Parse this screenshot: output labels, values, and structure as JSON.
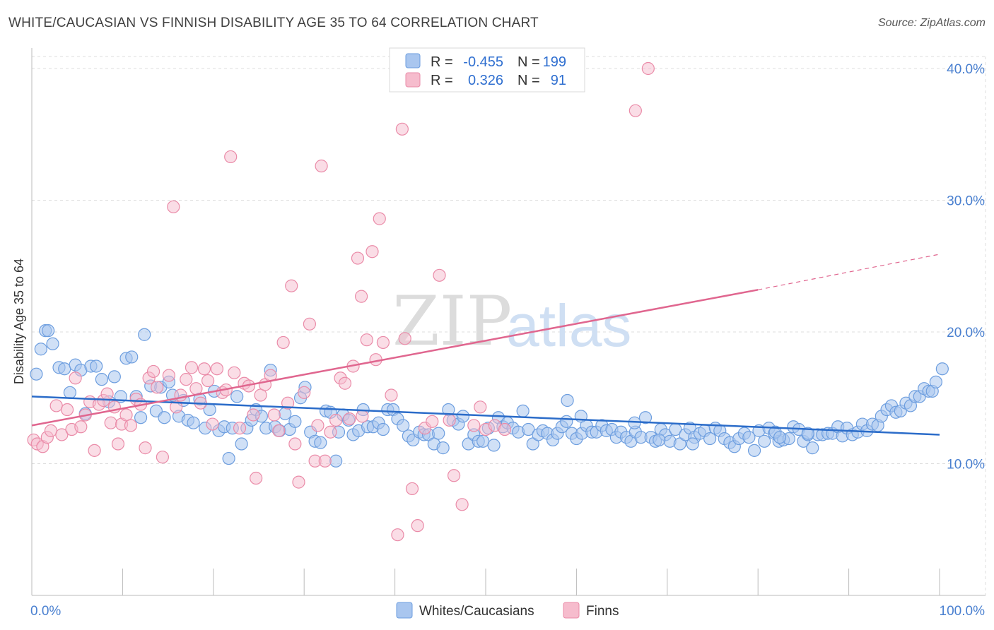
{
  "title": "WHITE/CAUCASIAN VS FINNISH DISABILITY AGE 35 TO 64 CORRELATION CHART",
  "source": "Source: ZipAtlas.com",
  "watermark": {
    "zip": "ZIP",
    "atlas": "atlas"
  },
  "colors": {
    "blue_fill": "#a9c6ef",
    "blue_stroke": "#6d9edf",
    "blue_line": "#2b6cc9",
    "pink_fill": "#f6bccd",
    "pink_stroke": "#ea8ba8",
    "pink_line": "#e0668f",
    "grid": "#dddddd",
    "tick_text": "#4a80d0"
  },
  "stats_legend": [
    {
      "r_label": "R =",
      "r_value": "-0.455",
      "n_label": "N =",
      "n_value": "199",
      "series": "Whites/Caucasians"
    },
    {
      "r_label": "R =",
      "r_value": "0.326",
      "n_label": "N =",
      "n_value": "91",
      "series": "Finns"
    }
  ],
  "chart_data": {
    "type": "scatter",
    "title": "WHITE/CAUCASIAN VS FINNISH DISABILITY AGE 35 TO 64 CORRELATION CHART",
    "xlabel": "",
    "ylabel": "Disability Age 35 to 64",
    "xlim": [
      0,
      100
    ],
    "ylim": [
      0,
      40
    ],
    "x_tick_labels": [
      "0.0%",
      "100.0%"
    ],
    "y_ticks": [
      10,
      20,
      30,
      40
    ],
    "y_tick_labels": [
      "10.0%",
      "20.0%",
      "30.0%",
      "40.0%"
    ],
    "grid": true,
    "legend_position": "bottom-center",
    "series": [
      {
        "name": "Whites/Caucasians",
        "trend": {
          "x0": 0,
          "y0": 15.1,
          "x1": 100,
          "y1": 12.2
        },
        "points": [
          [
            0.5,
            16.8
          ],
          [
            1,
            18.7
          ],
          [
            1.5,
            20.1
          ],
          [
            1.8,
            20.1
          ],
          [
            2.3,
            19.1
          ],
          [
            3,
            17.3
          ],
          [
            3.6,
            17.2
          ],
          [
            4.2,
            15.4
          ],
          [
            4.8,
            17.5
          ],
          [
            5.4,
            17.1
          ],
          [
            5.9,
            13.8
          ],
          [
            6.5,
            17.4
          ],
          [
            7.1,
            17.4
          ],
          [
            7.7,
            16.4
          ],
          [
            8.5,
            14.7
          ],
          [
            9.1,
            16.6
          ],
          [
            9.8,
            15.1
          ],
          [
            10.4,
            18.0
          ],
          [
            11,
            18.1
          ],
          [
            11.5,
            15.1
          ],
          [
            12,
            13.5
          ],
          [
            12.4,
            19.8
          ],
          [
            13.1,
            15.9
          ],
          [
            13.7,
            14.0
          ],
          [
            14.2,
            15.8
          ],
          [
            14.6,
            13.5
          ],
          [
            15.1,
            16.2
          ],
          [
            15.5,
            15.2
          ],
          [
            16.2,
            13.6
          ],
          [
            16.7,
            14.8
          ],
          [
            17.2,
            13.3
          ],
          [
            17.8,
            13.1
          ],
          [
            18.5,
            14.9
          ],
          [
            19.1,
            12.7
          ],
          [
            19.6,
            14.1
          ],
          [
            20.1,
            15.5
          ],
          [
            20.6,
            12.5
          ],
          [
            21.2,
            12.8
          ],
          [
            21.7,
            10.4
          ],
          [
            22.1,
            12.7
          ],
          [
            22.6,
            15.1
          ],
          [
            23.1,
            11.5
          ],
          [
            23.7,
            12.7
          ],
          [
            24.2,
            13.3
          ],
          [
            24.7,
            14.1
          ],
          [
            25.3,
            13.6
          ],
          [
            25.8,
            12.7
          ],
          [
            26.3,
            17.1
          ],
          [
            26.8,
            12.8
          ],
          [
            27.3,
            12.5
          ],
          [
            27.9,
            13.8
          ],
          [
            28.4,
            12.6
          ],
          [
            29,
            13.2
          ],
          [
            29.6,
            15.0
          ],
          [
            30.1,
            15.8
          ],
          [
            30.7,
            12.4
          ],
          [
            31.2,
            11.7
          ],
          [
            31.8,
            11.6
          ],
          [
            32.4,
            14.0
          ],
          [
            32.9,
            13.9
          ],
          [
            33.5,
            10.2
          ],
          [
            33.8,
            12.4
          ],
          [
            34.3,
            13.7
          ],
          [
            34.9,
            13.3
          ],
          [
            35.4,
            12.2
          ],
          [
            36,
            12.5
          ],
          [
            36.5,
            14.1
          ],
          [
            37,
            12.8
          ],
          [
            37.6,
            12.8
          ],
          [
            38.2,
            13.1
          ],
          [
            38.7,
            12.6
          ],
          [
            39.2,
            14.1
          ],
          [
            39.8,
            14.1
          ],
          [
            40.3,
            13.4
          ],
          [
            40.9,
            12.9
          ],
          [
            41.5,
            12.1
          ],
          [
            42,
            11.8
          ],
          [
            42.7,
            12.4
          ],
          [
            43.2,
            12.2
          ],
          [
            43.7,
            12.2
          ],
          [
            44.3,
            11.5
          ],
          [
            44.8,
            12.3
          ],
          [
            45.3,
            11.2
          ],
          [
            45.9,
            14.1
          ],
          [
            46.4,
            13.3
          ],
          [
            47,
            13.0
          ],
          [
            47.5,
            13.6
          ],
          [
            48.1,
            11.5
          ],
          [
            48.7,
            12.2
          ],
          [
            49.2,
            11.7
          ],
          [
            49.7,
            11.7
          ],
          [
            50.3,
            12.7
          ],
          [
            50.9,
            11.4
          ],
          [
            51.4,
            13.5
          ],
          [
            51.9,
            12.8
          ],
          [
            52.4,
            13.1
          ],
          [
            53,
            12.7
          ],
          [
            53.6,
            12.4
          ],
          [
            54.1,
            14.0
          ],
          [
            54.7,
            12.6
          ],
          [
            55.2,
            11.5
          ],
          [
            55.8,
            12.2
          ],
          [
            56.3,
            12.5
          ],
          [
            56.8,
            12.3
          ],
          [
            57.4,
            11.8
          ],
          [
            57.9,
            12.3
          ],
          [
            58.4,
            12.8
          ],
          [
            58.9,
            13.2
          ],
          [
            59.5,
            12.3
          ],
          [
            60,
            11.9
          ],
          [
            60.6,
            12.3
          ],
          [
            61.1,
            12.9
          ],
          [
            61.7,
            12.4
          ],
          [
            62.2,
            12.4
          ],
          [
            62.8,
            12.9
          ],
          [
            63.3,
            12.5
          ],
          [
            63.9,
            12.6
          ],
          [
            64.4,
            12.0
          ],
          [
            64.9,
            12.4
          ],
          [
            65.5,
            12.0
          ],
          [
            66,
            11.7
          ],
          [
            66.5,
            12.4
          ],
          [
            67.1,
            12.0
          ],
          [
            67.6,
            13.5
          ],
          [
            68.2,
            12.0
          ],
          [
            68.7,
            11.7
          ],
          [
            69.3,
            12.6
          ],
          [
            69.8,
            12.2
          ],
          [
            70.3,
            11.7
          ],
          [
            70.9,
            12.6
          ],
          [
            71.4,
            11.5
          ],
          [
            72,
            12.2
          ],
          [
            72.5,
            12.7
          ],
          [
            73,
            12.0
          ],
          [
            73.6,
            12.3
          ],
          [
            74.1,
            12.5
          ],
          [
            74.7,
            11.9
          ],
          [
            75.3,
            12.7
          ],
          [
            75.8,
            12.5
          ],
          [
            76.3,
            11.9
          ],
          [
            76.9,
            11.6
          ],
          [
            77.4,
            11.3
          ],
          [
            77.9,
            11.9
          ],
          [
            78.5,
            12.3
          ],
          [
            79,
            12.0
          ],
          [
            79.6,
            11.0
          ],
          [
            80.1,
            12.5
          ],
          [
            80.7,
            11.7
          ],
          [
            81.2,
            12.7
          ],
          [
            81.8,
            12.3
          ],
          [
            82.3,
            11.7
          ],
          [
            82.8,
            11.8
          ],
          [
            83.4,
            11.9
          ],
          [
            83.9,
            12.8
          ],
          [
            84.5,
            12.6
          ],
          [
            85,
            11.7
          ],
          [
            85.5,
            12.2
          ],
          [
            86,
            11.2
          ],
          [
            86.6,
            12.2
          ],
          [
            87.1,
            12.2
          ],
          [
            87.7,
            12.3
          ],
          [
            88.2,
            12.3
          ],
          [
            88.8,
            12.8
          ],
          [
            89.3,
            12.1
          ],
          [
            89.8,
            12.7
          ],
          [
            90.4,
            12.2
          ],
          [
            91,
            12.4
          ],
          [
            91.5,
            13.0
          ],
          [
            92,
            12.5
          ],
          [
            92.6,
            13.0
          ],
          [
            93.2,
            12.9
          ],
          [
            93.6,
            13.6
          ],
          [
            94.2,
            14.1
          ],
          [
            94.7,
            14.4
          ],
          [
            95.2,
            13.9
          ],
          [
            95.7,
            14.0
          ],
          [
            96.3,
            14.6
          ],
          [
            96.8,
            14.4
          ],
          [
            97.3,
            15.1
          ],
          [
            97.8,
            15.1
          ],
          [
            98.3,
            15.7
          ],
          [
            98.8,
            15.5
          ],
          [
            99.2,
            15.5
          ],
          [
            99.6,
            16.2
          ],
          [
            100.3,
            17.2
          ],
          [
            59,
            14.8
          ],
          [
            60.5,
            13.6
          ],
          [
            66.4,
            13.1
          ],
          [
            69.1,
            11.8
          ],
          [
            72.8,
            11.5
          ],
          [
            81.9,
            12.4
          ],
          [
            82.4,
            12.0
          ],
          [
            85.5,
            12.3
          ]
        ]
      },
      {
        "name": "Finns",
        "trend": {
          "x0": 0,
          "y0": 12.9,
          "x1": 80,
          "y1": 23.2
        },
        "trend_dashed_extension": {
          "x0": 80,
          "y0": 23.2,
          "x1": 100,
          "y1": 25.9
        },
        "points": [
          [
            0.2,
            11.8
          ],
          [
            0.6,
            11.5
          ],
          [
            1.2,
            11.3
          ],
          [
            1.7,
            12.0
          ],
          [
            2.1,
            12.5
          ],
          [
            2.7,
            14.4
          ],
          [
            3.3,
            12.2
          ],
          [
            3.9,
            14.1
          ],
          [
            4.4,
            12.6
          ],
          [
            4.8,
            16.5
          ],
          [
            5.4,
            12.8
          ],
          [
            5.9,
            13.7
          ],
          [
            6.4,
            14.7
          ],
          [
            6.9,
            11.0
          ],
          [
            7.4,
            14.5
          ],
          [
            7.9,
            14.8
          ],
          [
            8.3,
            15.3
          ],
          [
            8.7,
            13.1
          ],
          [
            9.1,
            14.3
          ],
          [
            9.5,
            11.5
          ],
          [
            9.9,
            13.0
          ],
          [
            10.4,
            13.7
          ],
          [
            10.9,
            12.9
          ],
          [
            11.5,
            14.9
          ],
          [
            12,
            14.5
          ],
          [
            12.5,
            11.2
          ],
          [
            12.9,
            16.5
          ],
          [
            13.4,
            17.0
          ],
          [
            13.8,
            15.8
          ],
          [
            14.4,
            10.5
          ],
          [
            15.1,
            16.7
          ],
          [
            15.6,
            29.5
          ],
          [
            15.9,
            14.3
          ],
          [
            16.4,
            15.2
          ],
          [
            17,
            16.4
          ],
          [
            17.6,
            17.3
          ],
          [
            18.1,
            15.7
          ],
          [
            18.6,
            14.6
          ],
          [
            19,
            17.2
          ],
          [
            19.4,
            16.3
          ],
          [
            19.9,
            13.0
          ],
          [
            20.4,
            17.2
          ],
          [
            21,
            15.4
          ],
          [
            21.4,
            15.6
          ],
          [
            21.9,
            33.3
          ],
          [
            22.3,
            16.9
          ],
          [
            22.9,
            12.7
          ],
          [
            23.4,
            16.1
          ],
          [
            23.9,
            15.9
          ],
          [
            24.4,
            13.7
          ],
          [
            24.7,
            8.9
          ],
          [
            25.2,
            15.2
          ],
          [
            25.7,
            16.0
          ],
          [
            26.3,
            16.7
          ],
          [
            26.7,
            13.7
          ],
          [
            27.2,
            12.5
          ],
          [
            27.7,
            19.2
          ],
          [
            28.2,
            14.6
          ],
          [
            28.6,
            23.5
          ],
          [
            29,
            11.5
          ],
          [
            29.4,
            8.6
          ],
          [
            30,
            15.4
          ],
          [
            30.6,
            20.6
          ],
          [
            31.2,
            10.2
          ],
          [
            31.5,
            12.9
          ],
          [
            31.9,
            32.6
          ],
          [
            32.3,
            10.2
          ],
          [
            32.9,
            12.4
          ],
          [
            33.5,
            13.3
          ],
          [
            34,
            16.5
          ],
          [
            34.5,
            16.1
          ],
          [
            35,
            13.4
          ],
          [
            35.4,
            17.4
          ],
          [
            35.9,
            25.6
          ],
          [
            36.3,
            22.7
          ],
          [
            36.9,
            19.4
          ],
          [
            37.5,
            26.1
          ],
          [
            37.9,
            17.9
          ],
          [
            38.3,
            28.6
          ],
          [
            38.7,
            19.2
          ],
          [
            39.6,
            15.2
          ],
          [
            40.3,
            4.6
          ],
          [
            40.8,
            35.4
          ],
          [
            41.1,
            19.5
          ],
          [
            41.9,
            8.1
          ],
          [
            42.5,
            5.3
          ],
          [
            43.3,
            12.7
          ],
          [
            44.1,
            13.2
          ],
          [
            44.9,
            24.3
          ],
          [
            46,
            13.3
          ],
          [
            46.5,
            9.1
          ]
        ]
      }
    ],
    "extra_finns_points": [
      [
        47.4,
        6.9
      ],
      [
        48.7,
        12.9
      ],
      [
        49.4,
        14.3
      ],
      [
        50.0,
        12.6
      ],
      [
        51.0,
        12.9
      ],
      [
        52.1,
        12.6
      ],
      [
        66.5,
        36.8
      ],
      [
        67.9,
        40.0
      ],
      [
        36.4,
        13.6
      ]
    ]
  },
  "bottom_legend": [
    {
      "label": "Whites/Caucasians",
      "series": "blue"
    },
    {
      "label": "Finns",
      "series": "pink"
    }
  ]
}
